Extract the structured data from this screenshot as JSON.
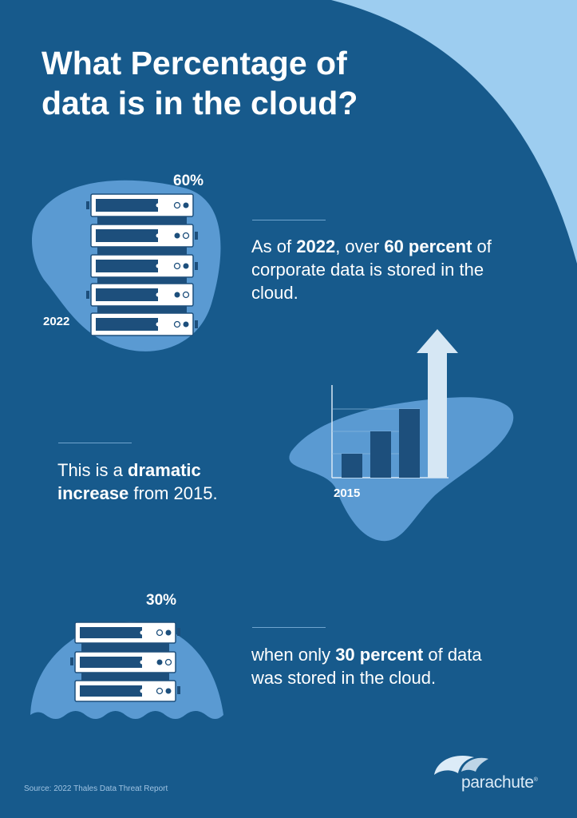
{
  "title": "What Percentage of data is in the cloud?",
  "section_2022": {
    "percent_label": "60%",
    "year_label": "2022",
    "text_parts": [
      "As of ",
      "2022",
      ", over ",
      "60 percent",
      " of corporate data is stored in the cloud."
    ]
  },
  "section_2015_increase": {
    "year_label": "2015",
    "text_parts": [
      "This is a ",
      "dramatic increase",
      " from 2015."
    ]
  },
  "section_2015": {
    "percent_label": "30%",
    "text_parts": [
      "when only ",
      "30 percent",
      " of data was stored in the cloud."
    ]
  },
  "source": "Source: 2022 Thales Data Threat Report",
  "logo": {
    "name": "parachute",
    "mark": "®"
  },
  "colors": {
    "background": "#175a8c",
    "accent_light": "#9dcdf0",
    "blob": "#5a9ad2",
    "server_dark": "#1d4f7c"
  }
}
